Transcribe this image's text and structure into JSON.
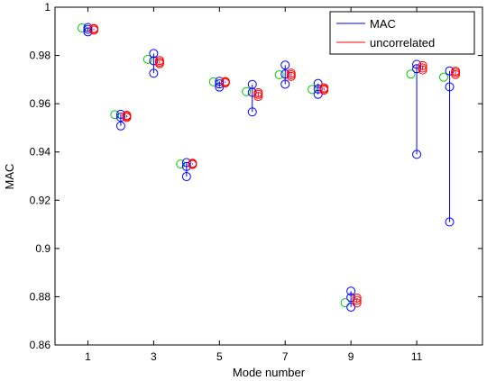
{
  "chart_data": {
    "type": "scatter",
    "title": "",
    "xlabel": "Mode number",
    "ylabel": "MAC",
    "xlim": [
      0,
      13
    ],
    "ylim": [
      0.86,
      1.0
    ],
    "xticks": [
      1,
      3,
      5,
      7,
      9,
      11
    ],
    "yticks": [
      0.86,
      0.88,
      0.9,
      0.92,
      0.94,
      0.96,
      0.98,
      1.0
    ],
    "ytick_labels": [
      "0.86",
      "0.88",
      "0.9",
      "0.92",
      "0.94",
      "0.96",
      "0.98",
      "1"
    ],
    "legend": {
      "position": "top-right",
      "entries": [
        {
          "label": "MAC",
          "color": "#0000ff"
        },
        {
          "label": "uncorrelated",
          "color": "#ff0000"
        }
      ]
    },
    "colors": {
      "green": "#00cc00",
      "blue": "#0000ff",
      "red": "#ff0000"
    },
    "modes": [
      {
        "x": 1,
        "green": 0.9914,
        "blue": [
          0.9898,
          0.9908,
          0.9916
        ],
        "red": [
          0.9905,
          0.991,
          0.9912
        ]
      },
      {
        "x": 2,
        "green": 0.9555,
        "blue": [
          0.9508,
          0.9544,
          0.9556
        ],
        "red": [
          0.9543,
          0.9548,
          0.9552
        ]
      },
      {
        "x": 3,
        "green": 0.9784,
        "blue": [
          0.9726,
          0.9778,
          0.9808
        ],
        "red": [
          0.9766,
          0.9772,
          0.9779
        ]
      },
      {
        "x": 4,
        "green": 0.935,
        "blue": [
          0.9298,
          0.934,
          0.9356
        ],
        "red": [
          0.9348,
          0.9351,
          0.9353
        ]
      },
      {
        "x": 5,
        "green": 0.9691,
        "blue": [
          0.9669,
          0.9682,
          0.9693
        ],
        "red": [
          0.9686,
          0.969,
          0.9692
        ]
      },
      {
        "x": 6,
        "green": 0.965,
        "blue": [
          0.9566,
          0.9647,
          0.968
        ],
        "red": [
          0.963,
          0.9639,
          0.9646
        ]
      },
      {
        "x": 7,
        "green": 0.972,
        "blue": [
          0.9681,
          0.9723,
          0.976
        ],
        "red": [
          0.9713,
          0.972,
          0.9727
        ]
      },
      {
        "x": 8,
        "green": 0.9659,
        "blue": [
          0.9639,
          0.9661,
          0.9684
        ],
        "red": [
          0.9656,
          0.9661,
          0.9666
        ]
      },
      {
        "x": 9,
        "green": 0.8775,
        "blue": [
          0.8757,
          0.8797,
          0.8823
        ],
        "red": [
          0.8774,
          0.8785,
          0.8795
        ]
      },
      {
        "x": 11,
        "green": 0.9723,
        "blue": [
          0.939,
          0.9745,
          0.9763
        ],
        "red": [
          0.974,
          0.9748,
          0.9758
        ]
      },
      {
        "x": 12,
        "green": 0.971,
        "blue": [
          0.911,
          0.967,
          0.9736
        ],
        "red": [
          0.9721,
          0.9729,
          0.9735
        ]
      }
    ]
  }
}
